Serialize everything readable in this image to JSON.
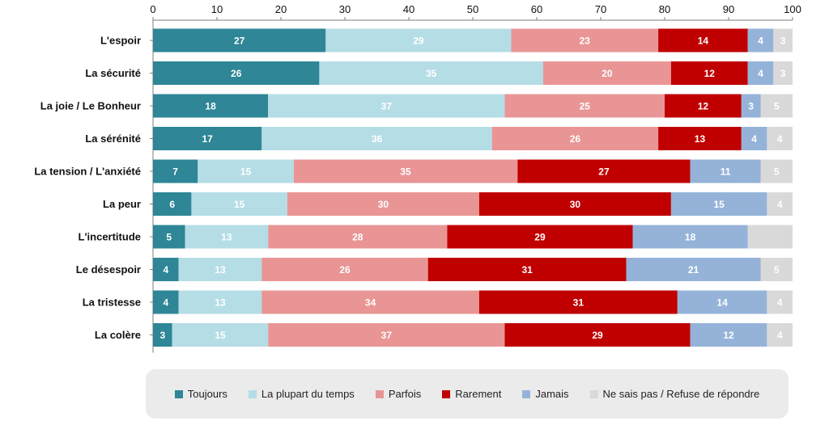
{
  "chart_data": {
    "type": "bar",
    "orientation": "horizontal",
    "stacked": true,
    "xlim": [
      0,
      100
    ],
    "xticks": [
      0,
      10,
      20,
      30,
      40,
      50,
      60,
      70,
      80,
      90,
      100
    ],
    "x_axis_position": "top",
    "grid": false,
    "legend_position": "bottom",
    "categories": [
      "L'espoir",
      "La sécurité",
      "La joie / Le Bonheur",
      "La sérénité",
      "La tension / L'anxiété",
      "La peur",
      "L'incertitude",
      "Le désespoir",
      "La tristesse",
      "La colère"
    ],
    "series": [
      {
        "name": "Toujours",
        "color": "#2e8696",
        "label_color": "#ffffff",
        "values": [
          27,
          26,
          18,
          17,
          7,
          6,
          5,
          4,
          4,
          3
        ]
      },
      {
        "name": "La plupart du temps",
        "color": "#b5dde6",
        "label_color": "#ffffff",
        "values": [
          29,
          35,
          37,
          36,
          15,
          15,
          13,
          13,
          13,
          15
        ]
      },
      {
        "name": "Parfois",
        "color": "#e99595",
        "label_color": "#ffffff",
        "values": [
          23,
          20,
          25,
          26,
          35,
          30,
          28,
          26,
          34,
          37
        ]
      },
      {
        "name": "Rarement",
        "color": "#c00000",
        "label_color": "#ffffff",
        "values": [
          14,
          12,
          12,
          13,
          27,
          30,
          29,
          31,
          31,
          29
        ]
      },
      {
        "name": "Jamais",
        "color": "#95b3d9",
        "label_color": "#ffffff",
        "values": [
          4,
          4,
          3,
          4,
          11,
          15,
          18,
          21,
          14,
          12
        ]
      },
      {
        "name": "Ne sais pas / Refuse de répondre",
        "color": "#d9d9d9",
        "label_color": "#ffffff",
        "values": [
          3,
          3,
          5,
          4,
          5,
          4,
          null,
          5,
          4,
          4
        ]
      }
    ]
  }
}
